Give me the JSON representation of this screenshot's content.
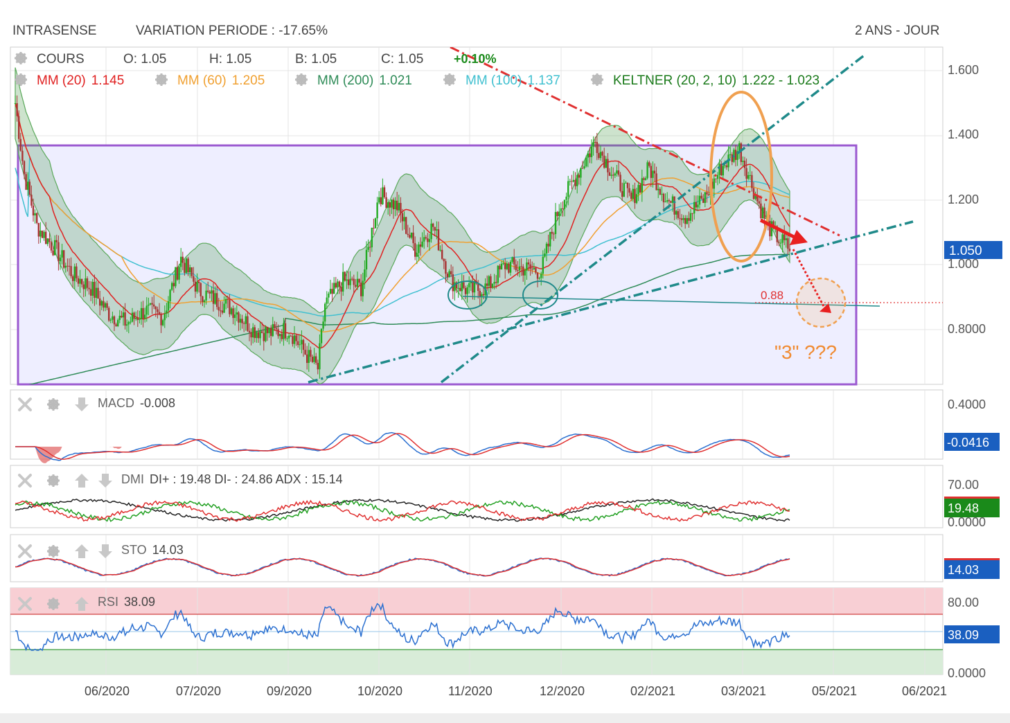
{
  "header": {
    "stock_name": "INTRASENSE",
    "variation": "VARIATION PERIODE : -17.65%",
    "period": "2 ANS - JOUR"
  },
  "price_legend": {
    "cours": "COURS",
    "open": "O: 1.05",
    "high": "H: 1.05",
    "low": "B: 1.05",
    "close": "C: 1.05",
    "change": "+0.10%"
  },
  "ma_legend": [
    {
      "label": "MM (20)",
      "value": "1.145",
      "color": "#e02020"
    },
    {
      "label": "MM (60)",
      "value": "1.205",
      "color": "#f0a030"
    },
    {
      "label": "MM (200)",
      "value": "1.021",
      "color": "#2e8b57"
    },
    {
      "label": "MM (100)",
      "value": "1.137",
      "color": "#40c0d0"
    },
    {
      "label": "KELTNER (20, 2, 10)",
      "value": "1.222 - 1.023",
      "color": "#1a7a1a"
    }
  ],
  "annotations": {
    "target_level": "0.88",
    "wave_label": "\"3\" ???",
    "current_price_badge": "1.050"
  },
  "indicators": {
    "macd": {
      "label": "MACD",
      "value": "-0.008",
      "badge": "-0.0416",
      "ticks": [
        "0.4000"
      ]
    },
    "dmi": {
      "label": "DMI",
      "value": "DI+ : 19.48 DI- : 24.86 ADX : 15.14",
      "badge": "19.48",
      "ticks": [
        "70.00",
        "0.0000"
      ]
    },
    "sto": {
      "label": "STO",
      "value": "14.03",
      "badge": "14.03"
    },
    "rsi": {
      "label": "RSI",
      "value": "38.09",
      "badge": "38.09",
      "ticks": [
        "80.00",
        "0.0000"
      ]
    }
  },
  "colors": {
    "up": "#22aa22",
    "down": "#a83232",
    "rectangle": "#9b59d0",
    "ellipse": "#f0a050",
    "badge_blue": "#1a5fc0",
    "badge_green": "#1a8a1a"
  },
  "chart_data": {
    "type": "candlestick",
    "title": "INTRASENSE",
    "y_ticks": [
      "1.600",
      "1.400",
      "1.200",
      "1.000",
      "0.8000"
    ],
    "ylim": [
      0.62,
      1.68
    ],
    "x_ticks": [
      "06/2020",
      "07/2020",
      "09/2020",
      "10/2020",
      "11/2020",
      "12/2020",
      "02/2021",
      "03/2021",
      "05/2021",
      "06/2021"
    ],
    "last_price": 1.05,
    "series_close_points": [
      [
        0,
        1.5
      ],
      [
        5,
        1.28
      ],
      [
        12,
        1.12
      ],
      [
        22,
        1.05
      ],
      [
        32,
        0.97
      ],
      [
        42,
        0.93
      ],
      [
        52,
        0.85
      ],
      [
        62,
        0.82
      ],
      [
        72,
        0.86
      ],
      [
        82,
        0.84
      ],
      [
        92,
        1.02
      ],
      [
        102,
        0.92
      ],
      [
        112,
        0.89
      ],
      [
        122,
        0.86
      ],
      [
        132,
        0.8
      ],
      [
        142,
        0.79
      ],
      [
        152,
        0.8
      ],
      [
        162,
        0.72
      ],
      [
        168,
        0.68
      ],
      [
        172,
        0.88
      ],
      [
        182,
        0.95
      ],
      [
        192,
        0.93
      ],
      [
        202,
        1.22
      ],
      [
        212,
        1.18
      ],
      [
        222,
        1.05
      ],
      [
        232,
        1.12
      ],
      [
        242,
        0.95
      ],
      [
        252,
        0.92
      ],
      [
        262,
        0.93
      ],
      [
        272,
        1.0
      ],
      [
        282,
        0.99
      ],
      [
        292,
        0.98
      ],
      [
        302,
        1.18
      ],
      [
        312,
        1.28
      ],
      [
        322,
        1.38
      ],
      [
        332,
        1.28
      ],
      [
        342,
        1.2
      ],
      [
        352,
        1.3
      ],
      [
        362,
        1.2
      ],
      [
        372,
        1.15
      ],
      [
        382,
        1.2
      ],
      [
        392,
        1.3
      ],
      [
        402,
        1.36
      ],
      [
        412,
        1.2
      ],
      [
        418,
        1.12
      ],
      [
        424,
        1.08
      ],
      [
        430,
        1.05
      ]
    ]
  }
}
